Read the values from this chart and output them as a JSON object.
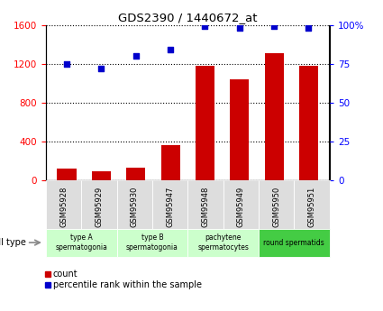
{
  "title": "GDS2390 / 1440672_at",
  "samples": [
    "GSM95928",
    "GSM95929",
    "GSM95930",
    "GSM95947",
    "GSM95948",
    "GSM95949",
    "GSM95950",
    "GSM95951"
  ],
  "counts": [
    120,
    90,
    130,
    360,
    1175,
    1040,
    1310,
    1175
  ],
  "percentile_ranks": [
    75,
    72,
    80,
    84,
    99,
    98,
    99,
    98
  ],
  "ylim_left": [
    0,
    1600
  ],
  "ylim_right": [
    0,
    100
  ],
  "yticks_left": [
    0,
    400,
    800,
    1200,
    1600
  ],
  "yticks_right": [
    0,
    25,
    50,
    75,
    100
  ],
  "ytick_labels_right": [
    "0",
    "25",
    "50",
    "75",
    "100%"
  ],
  "bar_color": "#cc0000",
  "dot_color": "#0000cc",
  "groups": [
    {
      "label": "type A\nspermatogonia",
      "start": 0,
      "end": 2,
      "color": "#ccffcc"
    },
    {
      "label": "type B\nspermatogonia",
      "start": 2,
      "end": 4,
      "color": "#ccffcc"
    },
    {
      "label": "pachytene\nspermatocytes",
      "start": 4,
      "end": 6,
      "color": "#ccffcc"
    },
    {
      "label": "round spermatids",
      "start": 6,
      "end": 8,
      "color": "#44cc44"
    }
  ],
  "legend_count_label": "count",
  "legend_pct_label": "percentile rank within the sample",
  "cell_type_label": "cell type",
  "sample_box_color": "#dddddd",
  "background_color": "#ffffff"
}
